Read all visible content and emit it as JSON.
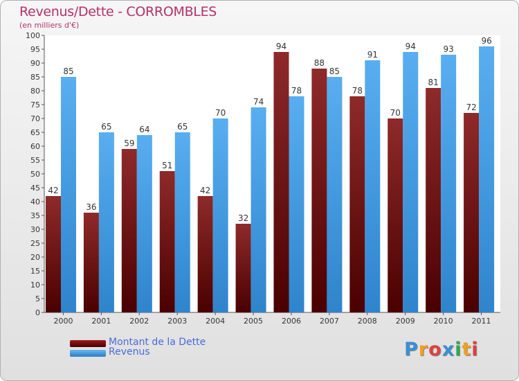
{
  "chart_data": {
    "type": "bar",
    "title": "Revenus/Dette - CORROMBLES",
    "subtitle": "(en milliers d'€)",
    "categories": [
      "2000",
      "2001",
      "2002",
      "2003",
      "2004",
      "2005",
      "2006",
      "2007",
      "2008",
      "2009",
      "2010",
      "2011"
    ],
    "series": [
      {
        "name": "Montant de la Dette",
        "color": "#6e0e12",
        "values": [
          42,
          36,
          59,
          51,
          42,
          32,
          94,
          88,
          78,
          70,
          81,
          72
        ]
      },
      {
        "name": "Revenus",
        "color": "#3d9ae0",
        "values": [
          85,
          65,
          64,
          65,
          70,
          74,
          78,
          85,
          91,
          94,
          93,
          96
        ]
      }
    ],
    "ylim": [
      0,
      100
    ],
    "yticks": [
      0,
      5,
      10,
      15,
      20,
      25,
      30,
      35,
      40,
      45,
      50,
      55,
      60,
      65,
      70,
      75,
      80,
      85,
      90,
      95,
      100
    ],
    "grid": false,
    "legend": "bottom-left"
  },
  "logo": {
    "letters": [
      "P",
      "r",
      "o",
      "x",
      "i",
      "t",
      "i"
    ],
    "colors": [
      "#3a8fd6",
      "#f0a020",
      "#e04040",
      "#3a8fd6",
      "#30a850",
      "#f0a020",
      "#e04040"
    ]
  }
}
